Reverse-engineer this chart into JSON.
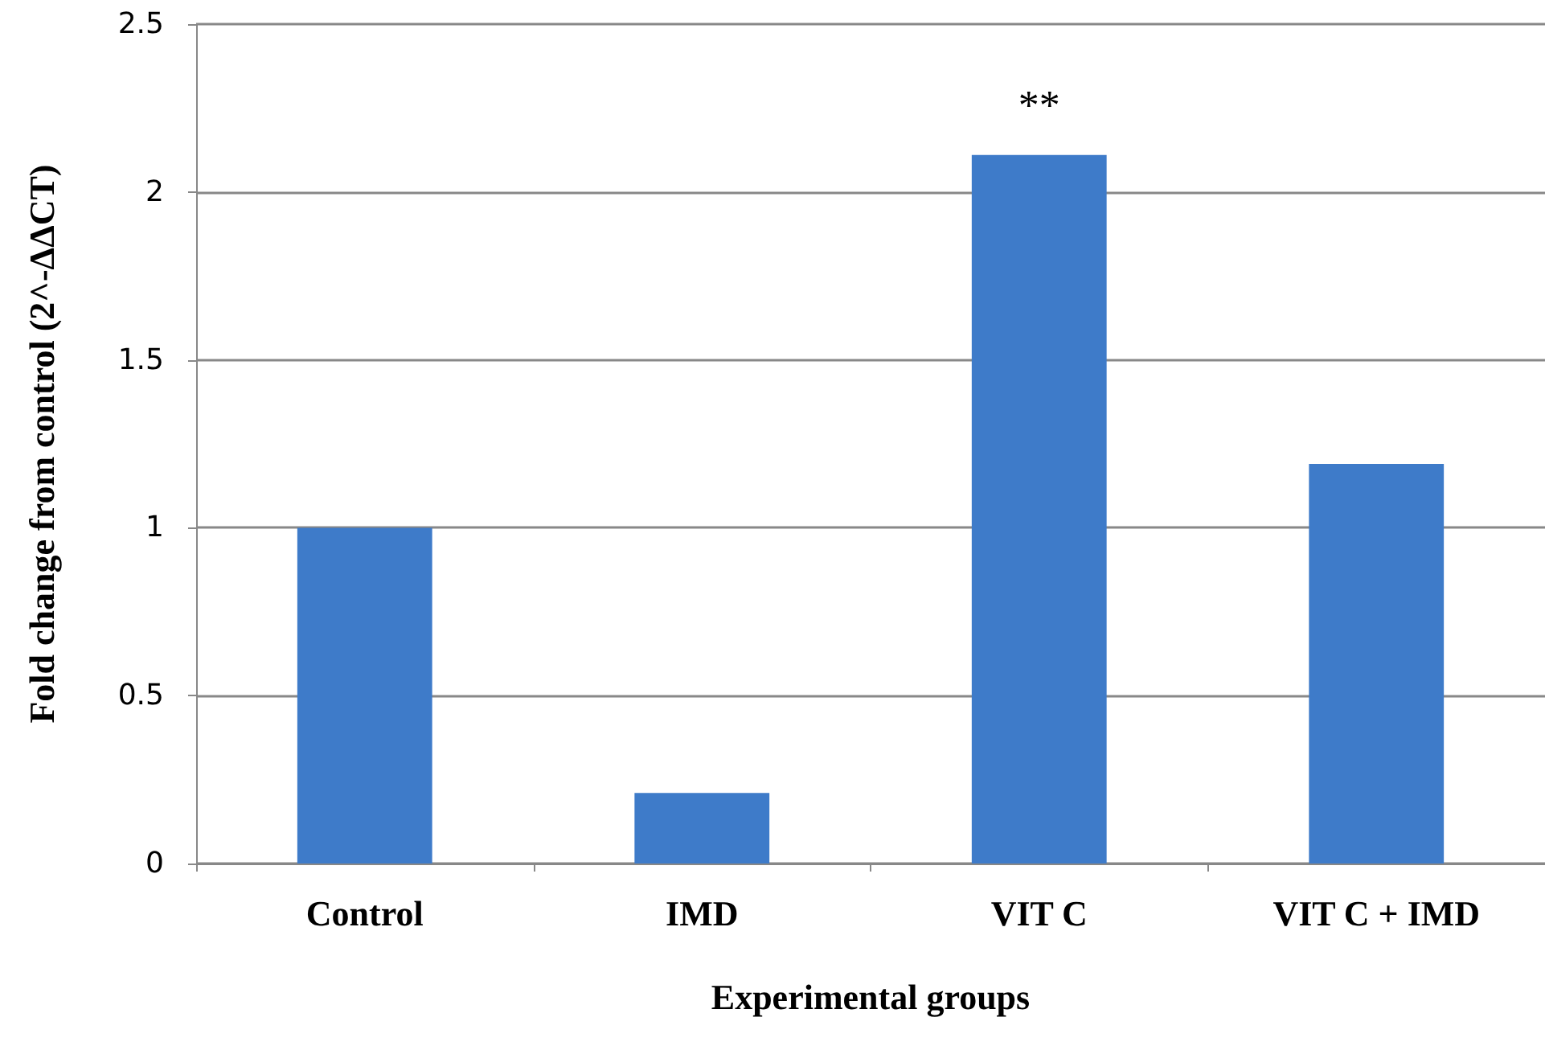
{
  "chart_data": {
    "type": "bar",
    "categories": [
      "Control",
      "IMD",
      "VIT C",
      "VIT C + IMD"
    ],
    "values": [
      1.0,
      0.21,
      2.11,
      1.19
    ],
    "color": "#3e7bc9",
    "xlabel": "Experimental groups",
    "ylabel": "Fold change from control (2^-ΔΔCT)",
    "ylim": [
      0,
      2.5
    ],
    "yticks": [
      0,
      0.5,
      1,
      1.5,
      2,
      2.5
    ],
    "grid": "y",
    "annotations": [
      {
        "text": "**",
        "x": "VIT C",
        "y": 2.11
      }
    ]
  }
}
